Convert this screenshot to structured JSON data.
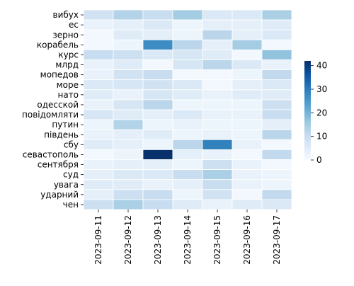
{
  "chart_data": {
    "type": "heatmap",
    "title": "",
    "xlabel": "",
    "ylabel": "",
    "x_categories": [
      "2023-09-11",
      "2023-09-12",
      "2023-09-13",
      "2023-09-14",
      "2023-09-15",
      "2023-09-16",
      "2023-09-17"
    ],
    "y_categories": [
      "вибух",
      "ес",
      "зерно",
      "корабель",
      "курс",
      "млрд",
      "мопедов",
      "море",
      "нато",
      "одесской",
      "повідомляти",
      "путин",
      "південь",
      "сбу",
      "севастополь",
      "сентября",
      "суд",
      "увага",
      "ударний",
      "чен"
    ],
    "values": [
      [
        8,
        13,
        10,
        15,
        6,
        6,
        14
      ],
      [
        3,
        4,
        6,
        2,
        4,
        4,
        5
      ],
      [
        1,
        5,
        4,
        2,
        12,
        4,
        6
      ],
      [
        1,
        2,
        27,
        12,
        4,
        15,
        1
      ],
      [
        10,
        9,
        6,
        7,
        5,
        1,
        17
      ],
      [
        3,
        5,
        1,
        7,
        12,
        6,
        3
      ],
      [
        3,
        8,
        10,
        1,
        1,
        2,
        11
      ],
      [
        6,
        7,
        8,
        6,
        1,
        4,
        6
      ],
      [
        5,
        3,
        7,
        5,
        3,
        5,
        5
      ],
      [
        3,
        7,
        12,
        2,
        2,
        2,
        9
      ],
      [
        7,
        5,
        4,
        6,
        3,
        3,
        10
      ],
      [
        2,
        13,
        2,
        3,
        2,
        2,
        4
      ],
      [
        3,
        4,
        5,
        2,
        3,
        2,
        12
      ],
      [
        5,
        4,
        2,
        12,
        29,
        3,
        1
      ],
      [
        1,
        2,
        42,
        4,
        3,
        1,
        11
      ],
      [
        3,
        4,
        4,
        2,
        9,
        3,
        1
      ],
      [
        4,
        6,
        6,
        10,
        14,
        3,
        2
      ],
      [
        5,
        5,
        3,
        4,
        10,
        3,
        2
      ],
      [
        4,
        9,
        10,
        2,
        8,
        1,
        11
      ],
      [
        9,
        14,
        10,
        5,
        3,
        5,
        6
      ]
    ],
    "colorbar": {
      "min": 0,
      "max": 42,
      "ticks": [
        0,
        10,
        20,
        30,
        40
      ],
      "colormap": "Blues",
      "low_color": "#f7fbff",
      "high_color": "#08306b"
    }
  }
}
